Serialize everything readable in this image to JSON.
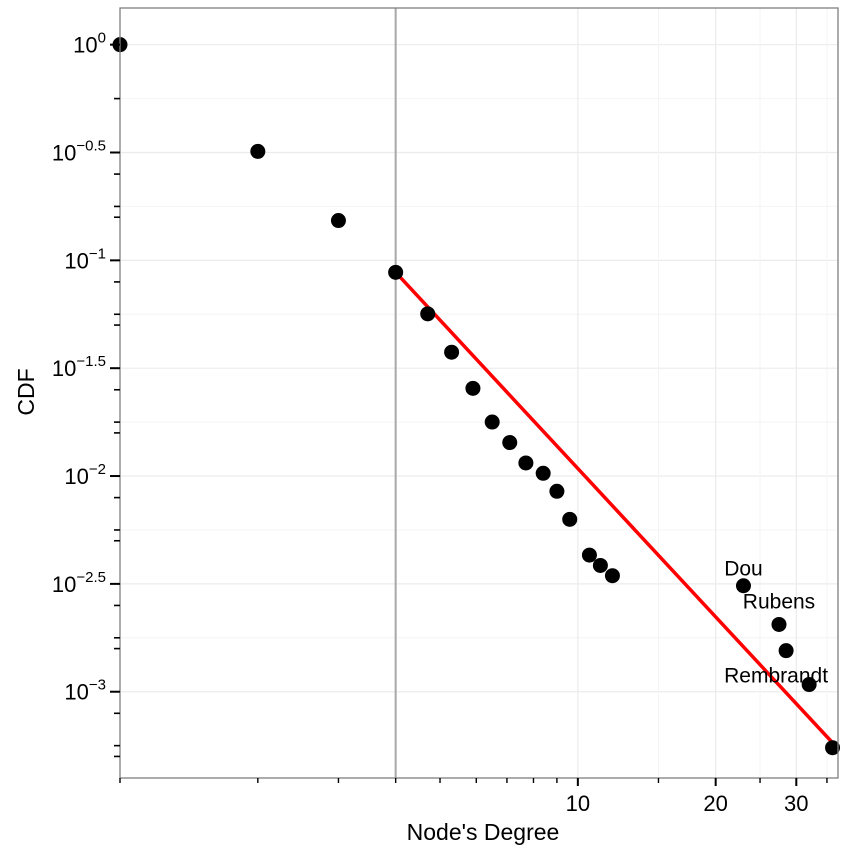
{
  "chart_data": {
    "type": "scatter",
    "title": "",
    "xlabel": "Node's Degree",
    "ylabel": "CDF",
    "x_scale": "log",
    "y_scale": "log",
    "xlim": [
      1,
      37
    ],
    "ylim_log10": [
      -3.4,
      0.17
    ],
    "x_ticks": [
      {
        "value": 10,
        "label": "10"
      },
      {
        "value": 20,
        "label": "20"
      },
      {
        "value": 30,
        "label": "30"
      }
    ],
    "y_ticks": [
      {
        "exp": 0,
        "base": "10",
        "sup": "0"
      },
      {
        "exp": -0.5,
        "base": "10",
        "sup": "−0.5"
      },
      {
        "exp": -1,
        "base": "10",
        "sup": "−1"
      },
      {
        "exp": -1.5,
        "base": "10",
        "sup": "−1.5"
      },
      {
        "exp": -2,
        "base": "10",
        "sup": "−2"
      },
      {
        "exp": -2.5,
        "base": "10",
        "sup": "−2.5"
      },
      {
        "exp": -3,
        "base": "10",
        "sup": "−3"
      }
    ],
    "grid": true,
    "xmin_line": 4,
    "points": [
      {
        "x": 1,
        "y": 1.0
      },
      {
        "x": 2,
        "y": 0.32
      },
      {
        "x": 3,
        "y": 0.153
      },
      {
        "x": 4,
        "y": 0.088
      },
      {
        "x": 4.7,
        "y": 0.0565
      },
      {
        "x": 5.3,
        "y": 0.0375
      },
      {
        "x": 5.9,
        "y": 0.0255
      },
      {
        "x": 6.5,
        "y": 0.0178
      },
      {
        "x": 7.1,
        "y": 0.0143
      },
      {
        "x": 7.7,
        "y": 0.0115
      },
      {
        "x": 8.4,
        "y": 0.0103
      },
      {
        "x": 9.0,
        "y": 0.0085
      },
      {
        "x": 9.6,
        "y": 0.0063
      },
      {
        "x": 10.6,
        "y": 0.0043
      },
      {
        "x": 11.2,
        "y": 0.00385
      },
      {
        "x": 11.9,
        "y": 0.00345
      },
      {
        "x": 23,
        "y": 0.0031,
        "label": "Dou"
      },
      {
        "x": 27.5,
        "y": 0.00205,
        "label": "Rubens"
      },
      {
        "x": 28.5,
        "y": 0.00155,
        "label": "Rembrandt"
      },
      {
        "x": 32,
        "y": 0.00108
      },
      {
        "x": 36,
        "y": 0.00055
      }
    ],
    "fit_line": {
      "color": "#ff0000",
      "from": {
        "x": 4,
        "y": 0.088
      },
      "to": {
        "x": 36,
        "y": 0.00058
      }
    }
  }
}
